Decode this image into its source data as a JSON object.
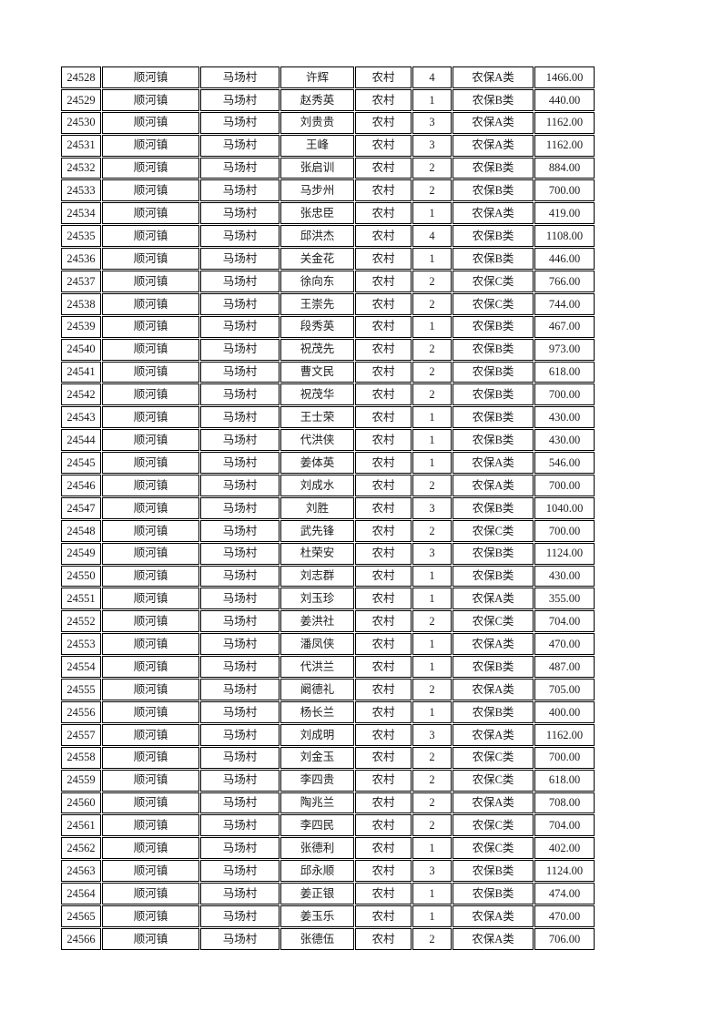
{
  "page": {
    "background_color": "#ffffff",
    "border_color": "#000000",
    "text_color": "#1c1c1c"
  },
  "table": {
    "field_order": [
      "id",
      "town",
      "village",
      "name",
      "type",
      "count",
      "category",
      "amount"
    ],
    "rows": [
      {
        "id": "24528",
        "town": "顺河镇",
        "village": "马场村",
        "name": "许辉",
        "type": "农村",
        "count": "4",
        "category": "农保A类",
        "amount": "1466.00"
      },
      {
        "id": "24529",
        "town": "顺河镇",
        "village": "马场村",
        "name": "赵秀英",
        "type": "农村",
        "count": "1",
        "category": "农保B类",
        "amount": "440.00"
      },
      {
        "id": "24530",
        "town": "顺河镇",
        "village": "马场村",
        "name": "刘贵贵",
        "type": "农村",
        "count": "3",
        "category": "农保A类",
        "amount": "1162.00"
      },
      {
        "id": "24531",
        "town": "顺河镇",
        "village": "马场村",
        "name": "王峰",
        "type": "农村",
        "count": "3",
        "category": "农保A类",
        "amount": "1162.00"
      },
      {
        "id": "24532",
        "town": "顺河镇",
        "village": "马场村",
        "name": "张启训",
        "type": "农村",
        "count": "2",
        "category": "农保B类",
        "amount": "884.00"
      },
      {
        "id": "24533",
        "town": "顺河镇",
        "village": "马场村",
        "name": "马步州",
        "type": "农村",
        "count": "2",
        "category": "农保B类",
        "amount": "700.00"
      },
      {
        "id": "24534",
        "town": "顺河镇",
        "village": "马场村",
        "name": "张忠臣",
        "type": "农村",
        "count": "1",
        "category": "农保A类",
        "amount": "419.00"
      },
      {
        "id": "24535",
        "town": "顺河镇",
        "village": "马场村",
        "name": "邱洪杰",
        "type": "农村",
        "count": "4",
        "category": "农保B类",
        "amount": "1108.00"
      },
      {
        "id": "24536",
        "town": "顺河镇",
        "village": "马场村",
        "name": "关金花",
        "type": "农村",
        "count": "1",
        "category": "农保B类",
        "amount": "446.00"
      },
      {
        "id": "24537",
        "town": "顺河镇",
        "village": "马场村",
        "name": "徐向东",
        "type": "农村",
        "count": "2",
        "category": "农保C类",
        "amount": "766.00"
      },
      {
        "id": "24538",
        "town": "顺河镇",
        "village": "马场村",
        "name": "王崇先",
        "type": "农村",
        "count": "2",
        "category": "农保C类",
        "amount": "744.00"
      },
      {
        "id": "24539",
        "town": "顺河镇",
        "village": "马场村",
        "name": "段秀英",
        "type": "农村",
        "count": "1",
        "category": "农保B类",
        "amount": "467.00"
      },
      {
        "id": "24540",
        "town": "顺河镇",
        "village": "马场村",
        "name": "祝茂先",
        "type": "农村",
        "count": "2",
        "category": "农保B类",
        "amount": "973.00"
      },
      {
        "id": "24541",
        "town": "顺河镇",
        "village": "马场村",
        "name": "曹文民",
        "type": "农村",
        "count": "2",
        "category": "农保B类",
        "amount": "618.00"
      },
      {
        "id": "24542",
        "town": "顺河镇",
        "village": "马场村",
        "name": "祝茂华",
        "type": "农村",
        "count": "2",
        "category": "农保B类",
        "amount": "700.00"
      },
      {
        "id": "24543",
        "town": "顺河镇",
        "village": "马场村",
        "name": "王士荣",
        "type": "农村",
        "count": "1",
        "category": "农保B类",
        "amount": "430.00"
      },
      {
        "id": "24544",
        "town": "顺河镇",
        "village": "马场村",
        "name": "代洪侠",
        "type": "农村",
        "count": "1",
        "category": "农保B类",
        "amount": "430.00"
      },
      {
        "id": "24545",
        "town": "顺河镇",
        "village": "马场村",
        "name": "姜体英",
        "type": "农村",
        "count": "1",
        "category": "农保A类",
        "amount": "546.00"
      },
      {
        "id": "24546",
        "town": "顺河镇",
        "village": "马场村",
        "name": "刘成水",
        "type": "农村",
        "count": "2",
        "category": "农保A类",
        "amount": "700.00"
      },
      {
        "id": "24547",
        "town": "顺河镇",
        "village": "马场村",
        "name": "刘胜",
        "type": "农村",
        "count": "3",
        "category": "农保B类",
        "amount": "1040.00"
      },
      {
        "id": "24548",
        "town": "顺河镇",
        "village": "马场村",
        "name": "武先锋",
        "type": "农村",
        "count": "2",
        "category": "农保C类",
        "amount": "700.00"
      },
      {
        "id": "24549",
        "town": "顺河镇",
        "village": "马场村",
        "name": "杜荣安",
        "type": "农村",
        "count": "3",
        "category": "农保B类",
        "amount": "1124.00"
      },
      {
        "id": "24550",
        "town": "顺河镇",
        "village": "马场村",
        "name": "刘志群",
        "type": "农村",
        "count": "1",
        "category": "农保B类",
        "amount": "430.00"
      },
      {
        "id": "24551",
        "town": "顺河镇",
        "village": "马场村",
        "name": "刘玉珍",
        "type": "农村",
        "count": "1",
        "category": "农保A类",
        "amount": "355.00"
      },
      {
        "id": "24552",
        "town": "顺河镇",
        "village": "马场村",
        "name": "姜洪社",
        "type": "农村",
        "count": "2",
        "category": "农保C类",
        "amount": "704.00"
      },
      {
        "id": "24553",
        "town": "顺河镇",
        "village": "马场村",
        "name": "潘凤侠",
        "type": "农村",
        "count": "1",
        "category": "农保A类",
        "amount": "470.00"
      },
      {
        "id": "24554",
        "town": "顺河镇",
        "village": "马场村",
        "name": "代洪兰",
        "type": "农村",
        "count": "1",
        "category": "农保B类",
        "amount": "487.00"
      },
      {
        "id": "24555",
        "town": "顺河镇",
        "village": "马场村",
        "name": "阚德礼",
        "type": "农村",
        "count": "2",
        "category": "农保A类",
        "amount": "705.00"
      },
      {
        "id": "24556",
        "town": "顺河镇",
        "village": "马场村",
        "name": "杨长兰",
        "type": "农村",
        "count": "1",
        "category": "农保B类",
        "amount": "400.00"
      },
      {
        "id": "24557",
        "town": "顺河镇",
        "village": "马场村",
        "name": "刘成明",
        "type": "农村",
        "count": "3",
        "category": "农保A类",
        "amount": "1162.00"
      },
      {
        "id": "24558",
        "town": "顺河镇",
        "village": "马场村",
        "name": "刘金玉",
        "type": "农村",
        "count": "2",
        "category": "农保C类",
        "amount": "700.00"
      },
      {
        "id": "24559",
        "town": "顺河镇",
        "village": "马场村",
        "name": "李四贵",
        "type": "农村",
        "count": "2",
        "category": "农保C类",
        "amount": "618.00"
      },
      {
        "id": "24560",
        "town": "顺河镇",
        "village": "马场村",
        "name": "陶兆兰",
        "type": "农村",
        "count": "2",
        "category": "农保A类",
        "amount": "708.00"
      },
      {
        "id": "24561",
        "town": "顺河镇",
        "village": "马场村",
        "name": "李四民",
        "type": "农村",
        "count": "2",
        "category": "农保C类",
        "amount": "704.00"
      },
      {
        "id": "24562",
        "town": "顺河镇",
        "village": "马场村",
        "name": "张德利",
        "type": "农村",
        "count": "1",
        "category": "农保C类",
        "amount": "402.00"
      },
      {
        "id": "24563",
        "town": "顺河镇",
        "village": "马场村",
        "name": "邱永顺",
        "type": "农村",
        "count": "3",
        "category": "农保B类",
        "amount": "1124.00"
      },
      {
        "id": "24564",
        "town": "顺河镇",
        "village": "马场村",
        "name": "姜正银",
        "type": "农村",
        "count": "1",
        "category": "农保B类",
        "amount": "474.00"
      },
      {
        "id": "24565",
        "town": "顺河镇",
        "village": "马场村",
        "name": "姜玉乐",
        "type": "农村",
        "count": "1",
        "category": "农保A类",
        "amount": "470.00"
      },
      {
        "id": "24566",
        "town": "顺河镇",
        "village": "马场村",
        "name": "张德伍",
        "type": "农村",
        "count": "2",
        "category": "农保A类",
        "amount": "706.00"
      }
    ]
  }
}
